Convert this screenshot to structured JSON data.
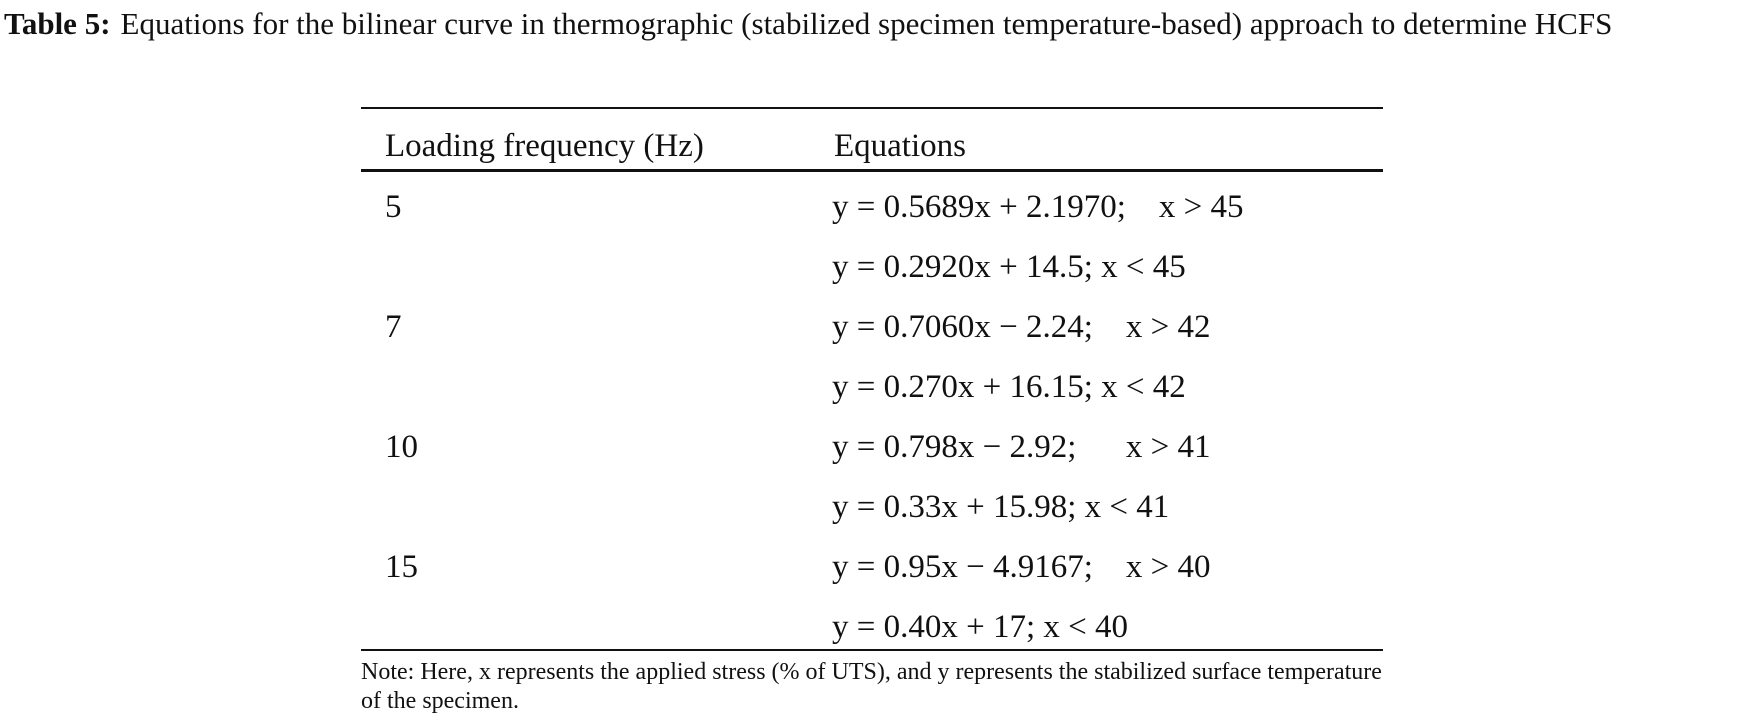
{
  "caption": {
    "label": "Table 5:",
    "text": "Equations for the bilinear curve in thermographic (stabilized specimen temperature-based) approach to determine HCFS"
  },
  "table": {
    "headers": [
      "Loading frequency (Hz)",
      "Equations"
    ],
    "rows": [
      {
        "frequency": "5",
        "equations": [
          "y = 0.5689x + 2.1970;    x > 45",
          "y = 0.2920x + 14.5; x < 45"
        ]
      },
      {
        "frequency": "7",
        "equations": [
          "y = 0.7060x − 2.24;    x > 42",
          "y = 0.270x + 16.15; x < 42"
        ]
      },
      {
        "frequency": "10",
        "equations": [
          "y = 0.798x − 2.92;      x > 41",
          "y = 0.33x + 15.98; x < 41"
        ]
      },
      {
        "frequency": "15",
        "equations": [
          "y = 0.95x − 4.9167;    x > 40",
          "y = 0.40x + 17; x < 40"
        ]
      }
    ]
  },
  "note": "Note: Here, x represents the applied stress (% of UTS), and y represents the stabilized surface temperature of the specimen."
}
